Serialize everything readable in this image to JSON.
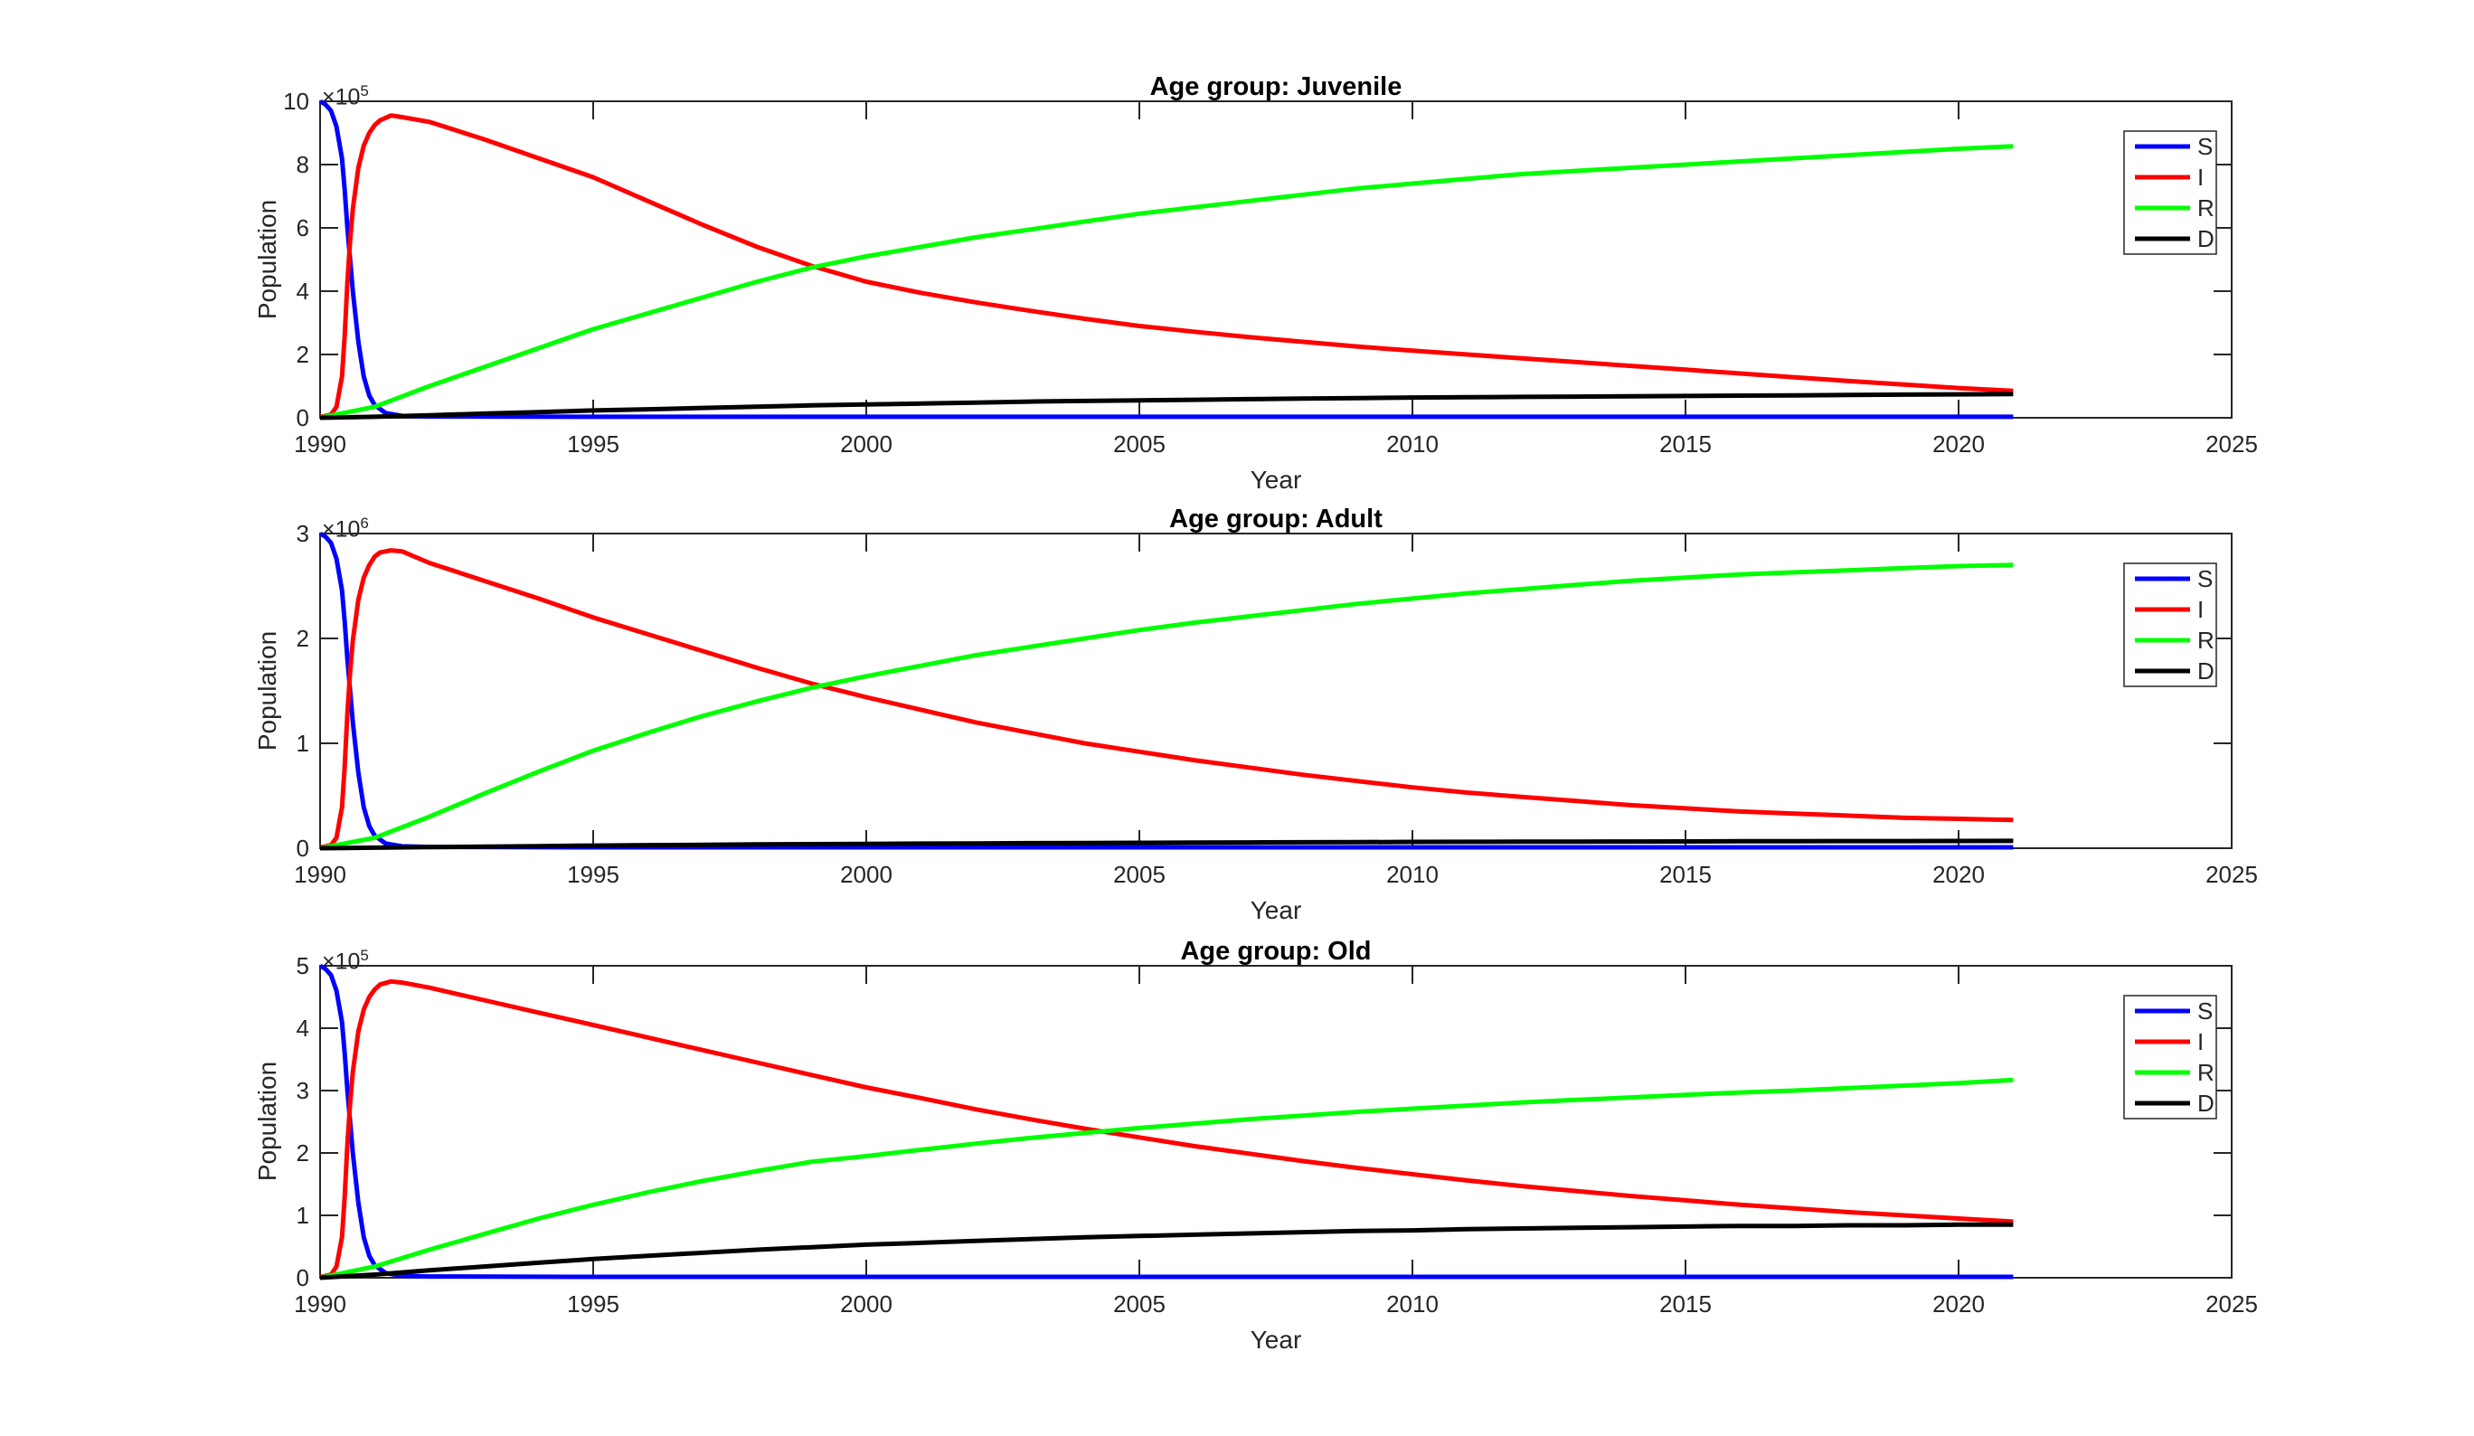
{
  "figure": {
    "background": "#ffffff",
    "axis_color": "#262626",
    "tick_label_color": "#262626",
    "title_color": "#000000"
  },
  "chart_data": [
    {
      "type": "line",
      "title": "Age group: Juvenile",
      "xlabel": "Year",
      "ylabel": "Population",
      "y_offset_base": "×10",
      "y_offset_exp": "5",
      "xlim": [
        1990,
        2025
      ],
      "ylim": [
        0,
        10
      ],
      "x_ticks": [
        1990,
        1995,
        2000,
        2005,
        2010,
        2015,
        2020,
        2025
      ],
      "y_ticks": [
        0,
        2,
        4,
        6,
        8,
        10
      ],
      "grid": false,
      "legend_position": "northeast",
      "legend": [
        "S",
        "I",
        "R",
        "D"
      ],
      "series": [
        {
          "name": "S",
          "color": "#0000FF",
          "x": [
            1990,
            1990.1,
            1990.2,
            1990.3,
            1990.4,
            1990.45,
            1990.5,
            1990.55,
            1990.6,
            1990.7,
            1990.8,
            1990.9,
            1991,
            1991.2,
            1991.5,
            1992,
            1995,
            2000,
            2010,
            2021
          ],
          "y": [
            10,
            9.9,
            9.7,
            9.2,
            8.2,
            7.2,
            6.0,
            5.0,
            4.0,
            2.4,
            1.3,
            0.7,
            0.4,
            0.15,
            0.06,
            0.04,
            0.03,
            0.03,
            0.03,
            0.03
          ]
        },
        {
          "name": "I",
          "color": "#FF0000",
          "x": [
            1990,
            1990.2,
            1990.3,
            1990.4,
            1990.45,
            1990.5,
            1990.55,
            1990.6,
            1990.7,
            1990.8,
            1990.9,
            1991,
            1991.1,
            1991.3,
            1991.5,
            1992,
            1993,
            1994,
            1995,
            1996,
            1997,
            1998,
            1999,
            2000,
            2001,
            2002,
            2003,
            2004,
            2005,
            2006,
            2007,
            2008,
            2009,
            2010,
            2011,
            2012,
            2013,
            2014,
            2015,
            2016,
            2017,
            2018,
            2019,
            2020,
            2021
          ],
          "y": [
            0.02,
            0.1,
            0.35,
            1.3,
            2.6,
            4.3,
            5.6,
            6.6,
            7.9,
            8.6,
            9.0,
            9.25,
            9.4,
            9.55,
            9.5,
            9.35,
            8.8,
            8.2,
            7.6,
            6.85,
            6.1,
            5.4,
            4.8,
            4.3,
            3.95,
            3.65,
            3.38,
            3.13,
            2.9,
            2.72,
            2.55,
            2.4,
            2.25,
            2.12,
            2.0,
            1.88,
            1.76,
            1.64,
            1.52,
            1.4,
            1.28,
            1.16,
            1.05,
            0.94,
            0.85
          ]
        },
        {
          "name": "R",
          "color": "#00FF00",
          "x": [
            1990,
            1991,
            1992,
            1993,
            1994,
            1995,
            1996,
            1997,
            1998,
            1999,
            2000,
            2001,
            2002,
            2003,
            2004,
            2005,
            2006,
            2007,
            2008,
            2009,
            2010,
            2011,
            2012,
            2013,
            2014,
            2015,
            2016,
            2017,
            2018,
            2019,
            2020,
            2021
          ],
          "y": [
            0,
            0.35,
            1.0,
            1.6,
            2.2,
            2.8,
            3.3,
            3.8,
            4.3,
            4.75,
            5.1,
            5.4,
            5.7,
            5.95,
            6.2,
            6.45,
            6.65,
            6.85,
            7.05,
            7.25,
            7.4,
            7.55,
            7.7,
            7.8,
            7.9,
            8.0,
            8.1,
            8.2,
            8.3,
            8.4,
            8.5,
            8.58
          ]
        },
        {
          "name": "D",
          "color": "#000000",
          "x": [
            1990,
            1991,
            1992,
            1993,
            1994,
            1995,
            1996,
            1997,
            1998,
            1999,
            2000,
            2001,
            2002,
            2003,
            2004,
            2005,
            2006,
            2007,
            2008,
            2009,
            2010,
            2011,
            2012,
            2013,
            2014,
            2015,
            2016,
            2017,
            2018,
            2019,
            2020,
            2021
          ],
          "y": [
            0,
            0.03,
            0.08,
            0.13,
            0.18,
            0.23,
            0.27,
            0.31,
            0.35,
            0.39,
            0.42,
            0.45,
            0.48,
            0.51,
            0.53,
            0.55,
            0.57,
            0.59,
            0.61,
            0.62,
            0.64,
            0.65,
            0.66,
            0.67,
            0.68,
            0.69,
            0.7,
            0.71,
            0.72,
            0.73,
            0.74,
            0.75
          ]
        }
      ]
    },
    {
      "type": "line",
      "title": "Age group: Adult",
      "xlabel": "Year",
      "ylabel": "Population",
      "y_offset_base": "×10",
      "y_offset_exp": "6",
      "xlim": [
        1990,
        2025
      ],
      "ylim": [
        0,
        3
      ],
      "x_ticks": [
        1990,
        1995,
        2000,
        2005,
        2010,
        2015,
        2020,
        2025
      ],
      "y_ticks": [
        0,
        1,
        2,
        3
      ],
      "grid": false,
      "legend_position": "northeast",
      "legend": [
        "S",
        "I",
        "R",
        "D"
      ],
      "series": [
        {
          "name": "S",
          "color": "#0000FF",
          "x": [
            1990,
            1990.1,
            1990.2,
            1990.3,
            1990.4,
            1990.45,
            1990.5,
            1990.55,
            1990.6,
            1990.7,
            1990.8,
            1990.9,
            1991,
            1991.2,
            1991.5,
            1992,
            1995,
            2000,
            2010,
            2021
          ],
          "y": [
            3,
            2.97,
            2.91,
            2.76,
            2.46,
            2.16,
            1.8,
            1.5,
            1.2,
            0.72,
            0.39,
            0.21,
            0.12,
            0.045,
            0.018,
            0.012,
            0.009,
            0.009,
            0.009,
            0.009
          ]
        },
        {
          "name": "I",
          "color": "#FF0000",
          "x": [
            1990,
            1990.2,
            1990.3,
            1990.4,
            1990.45,
            1990.5,
            1990.55,
            1990.6,
            1990.7,
            1990.8,
            1990.9,
            1991,
            1991.1,
            1991.3,
            1991.5,
            1992,
            1993,
            1994,
            1995,
            1996,
            1997,
            1998,
            1999,
            2000,
            2001,
            2002,
            2003,
            2004,
            2005,
            2006,
            2007,
            2008,
            2009,
            2010,
            2011,
            2012,
            2013,
            2014,
            2015,
            2016,
            2017,
            2018,
            2019,
            2020,
            2021
          ],
          "y": [
            0.006,
            0.03,
            0.1,
            0.39,
            0.78,
            1.29,
            1.68,
            1.98,
            2.37,
            2.58,
            2.7,
            2.78,
            2.82,
            2.84,
            2.83,
            2.72,
            2.55,
            2.38,
            2.2,
            2.04,
            1.88,
            1.72,
            1.57,
            1.44,
            1.32,
            1.2,
            1.1,
            1.0,
            0.92,
            0.84,
            0.77,
            0.7,
            0.64,
            0.58,
            0.53,
            0.49,
            0.45,
            0.41,
            0.38,
            0.35,
            0.33,
            0.31,
            0.29,
            0.28,
            0.27
          ]
        },
        {
          "name": "R",
          "color": "#00FF00",
          "x": [
            1990,
            1991,
            1992,
            1993,
            1994,
            1995,
            1996,
            1997,
            1998,
            1999,
            2000,
            2001,
            2002,
            2003,
            2004,
            2005,
            2006,
            2007,
            2008,
            2009,
            2010,
            2011,
            2012,
            2013,
            2014,
            2015,
            2016,
            2017,
            2018,
            2019,
            2020,
            2021
          ],
          "y": [
            0,
            0.1,
            0.3,
            0.52,
            0.73,
            0.93,
            1.1,
            1.26,
            1.4,
            1.53,
            1.64,
            1.74,
            1.84,
            1.92,
            2.0,
            2.08,
            2.15,
            2.21,
            2.27,
            2.33,
            2.38,
            2.43,
            2.47,
            2.51,
            2.55,
            2.58,
            2.61,
            2.63,
            2.65,
            2.67,
            2.69,
            2.7
          ]
        },
        {
          "name": "D",
          "color": "#000000",
          "x": [
            1990,
            1991,
            1992,
            1993,
            1994,
            1995,
            1996,
            1997,
            1998,
            1999,
            2000,
            2001,
            2002,
            2003,
            2004,
            2005,
            2006,
            2007,
            2008,
            2009,
            2010,
            2011,
            2012,
            2013,
            2014,
            2015,
            2016,
            2017,
            2018,
            2019,
            2020,
            2021
          ],
          "y": [
            0,
            0.005,
            0.01,
            0.015,
            0.02,
            0.025,
            0.029,
            0.032,
            0.036,
            0.039,
            0.041,
            0.044,
            0.046,
            0.048,
            0.05,
            0.052,
            0.054,
            0.055,
            0.057,
            0.058,
            0.06,
            0.061,
            0.062,
            0.063,
            0.064,
            0.065,
            0.066,
            0.067,
            0.068,
            0.068,
            0.069,
            0.07
          ]
        }
      ]
    },
    {
      "type": "line",
      "title": "Age group: Old",
      "xlabel": "Year",
      "ylabel": "Population",
      "y_offset_base": "×10",
      "y_offset_exp": "5",
      "xlim": [
        1990,
        2025
      ],
      "ylim": [
        0,
        5
      ],
      "x_ticks": [
        1990,
        1995,
        2000,
        2005,
        2010,
        2015,
        2020,
        2025
      ],
      "y_ticks": [
        0,
        1,
        2,
        3,
        4,
        5
      ],
      "grid": false,
      "legend_position": "northeast",
      "legend": [
        "S",
        "I",
        "R",
        "D"
      ],
      "series": [
        {
          "name": "S",
          "color": "#0000FF",
          "x": [
            1990,
            1990.1,
            1990.2,
            1990.3,
            1990.4,
            1990.45,
            1990.5,
            1990.55,
            1990.6,
            1990.7,
            1990.8,
            1990.9,
            1991,
            1991.2,
            1991.5,
            1992,
            1995,
            2000,
            2010,
            2021
          ],
          "y": [
            5,
            4.95,
            4.85,
            4.6,
            4.1,
            3.6,
            3.0,
            2.5,
            2.0,
            1.2,
            0.65,
            0.35,
            0.2,
            0.075,
            0.03,
            0.02,
            0.015,
            0.015,
            0.015,
            0.015
          ]
        },
        {
          "name": "I",
          "color": "#FF0000",
          "x": [
            1990,
            1990.2,
            1990.3,
            1990.4,
            1990.45,
            1990.5,
            1990.55,
            1990.6,
            1990.7,
            1990.8,
            1990.9,
            1991,
            1991.1,
            1991.3,
            1991.5,
            1992,
            1993,
            1994,
            1995,
            1996,
            1997,
            1998,
            1999,
            2000,
            2001,
            2002,
            2003,
            2004,
            2005,
            2006,
            2007,
            2008,
            2009,
            2010,
            2011,
            2012,
            2013,
            2014,
            2015,
            2016,
            2017,
            2018,
            2019,
            2020,
            2021
          ],
          "y": [
            0.01,
            0.05,
            0.18,
            0.65,
            1.3,
            2.15,
            2.8,
            3.3,
            3.95,
            4.3,
            4.5,
            4.62,
            4.7,
            4.75,
            4.73,
            4.65,
            4.45,
            4.25,
            4.05,
            3.85,
            3.65,
            3.45,
            3.25,
            3.05,
            2.88,
            2.7,
            2.54,
            2.39,
            2.25,
            2.11,
            1.99,
            1.87,
            1.76,
            1.66,
            1.56,
            1.47,
            1.39,
            1.31,
            1.24,
            1.17,
            1.11,
            1.05,
            1.0,
            0.95,
            0.9
          ]
        },
        {
          "name": "R",
          "color": "#00FF00",
          "x": [
            1990,
            1991,
            1992,
            1993,
            1994,
            1995,
            1996,
            1997,
            1998,
            1999,
            2000,
            2001,
            2002,
            2003,
            2004,
            2005,
            2006,
            2007,
            2008,
            2009,
            2010,
            2011,
            2012,
            2013,
            2014,
            2015,
            2016,
            2017,
            2018,
            2019,
            2020,
            2021
          ],
          "y": [
            0,
            0.18,
            0.45,
            0.7,
            0.95,
            1.17,
            1.37,
            1.55,
            1.71,
            1.86,
            1.95,
            2.05,
            2.15,
            2.24,
            2.32,
            2.4,
            2.47,
            2.54,
            2.6,
            2.66,
            2.71,
            2.76,
            2.81,
            2.85,
            2.89,
            2.93,
            2.97,
            3.0,
            3.04,
            3.08,
            3.12,
            3.17
          ]
        },
        {
          "name": "D",
          "color": "#000000",
          "x": [
            1990,
            1991,
            1992,
            1993,
            1994,
            1995,
            1996,
            1997,
            1998,
            1999,
            2000,
            2001,
            2002,
            2003,
            2004,
            2005,
            2006,
            2007,
            2008,
            2009,
            2010,
            2011,
            2012,
            2013,
            2014,
            2015,
            2016,
            2017,
            2018,
            2019,
            2020,
            2021
          ],
          "y": [
            0,
            0.05,
            0.12,
            0.18,
            0.24,
            0.3,
            0.35,
            0.4,
            0.45,
            0.49,
            0.53,
            0.56,
            0.59,
            0.62,
            0.65,
            0.67,
            0.69,
            0.71,
            0.73,
            0.75,
            0.76,
            0.78,
            0.79,
            0.8,
            0.81,
            0.82,
            0.83,
            0.83,
            0.84,
            0.84,
            0.85,
            0.85
          ]
        }
      ]
    }
  ]
}
